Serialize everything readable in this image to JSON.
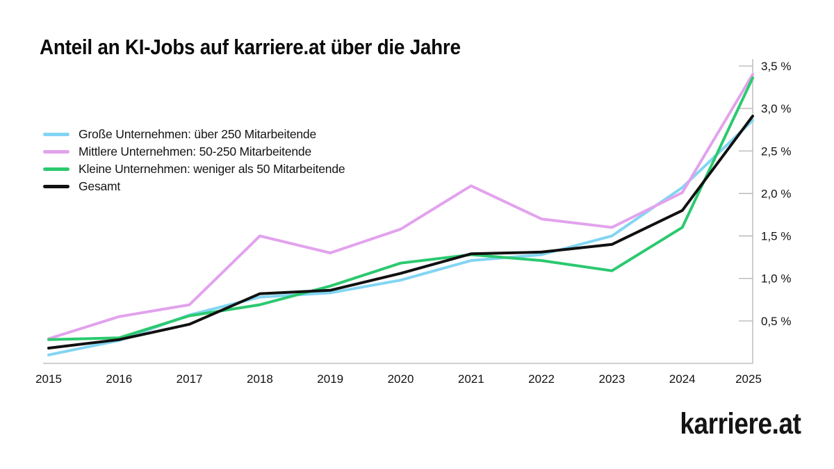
{
  "title": "Anteil an KI-Jobs auf karriere.at über die Jahre",
  "logo": "karriere.at",
  "chart_data": {
    "type": "line",
    "x": [
      2015,
      2016,
      2017,
      2018,
      2019,
      2020,
      2021,
      2022,
      2023,
      2024,
      2025
    ],
    "series": [
      {
        "name": "Große Unternehmen: über 250 Mitarbeitende",
        "color": "#82d5f2",
        "values": [
          0.1,
          0.27,
          0.57,
          0.78,
          0.83,
          0.98,
          1.21,
          1.28,
          1.5,
          2.07,
          2.86
        ]
      },
      {
        "name": "Mittlere Unternehmen: 50-250 Mitarbeitende",
        "color": "#e2a2ed",
        "values": [
          0.29,
          0.55,
          0.69,
          1.5,
          1.3,
          1.58,
          2.09,
          1.7,
          1.6,
          2.01,
          3.4
        ]
      },
      {
        "name": "Kleine Unternehmen: weniger als 50 Mitarbeitende",
        "color": "#2bc96f",
        "values": [
          0.28,
          0.3,
          0.56,
          0.69,
          0.91,
          1.18,
          1.28,
          1.21,
          1.09,
          1.6,
          3.36
        ]
      },
      {
        "name": "Gesamt",
        "color": "#111111",
        "values": [
          0.18,
          0.28,
          0.46,
          0.82,
          0.86,
          1.06,
          1.29,
          1.31,
          1.4,
          1.8,
          2.91
        ]
      }
    ],
    "ylabel": "",
    "xlabel": "",
    "ylim": [
      0,
      3.5
    ],
    "ytick_step": 0.5,
    "ytick_labels": [
      "0,5 %",
      "1,0 %",
      "1,5 %",
      "2,0 %",
      "2,5 %",
      "3,0 %",
      "3,5 %"
    ],
    "yaxis_side": "right",
    "legend_position": "upper-left",
    "grid": false,
    "axis_color": "#b3b3b3"
  }
}
